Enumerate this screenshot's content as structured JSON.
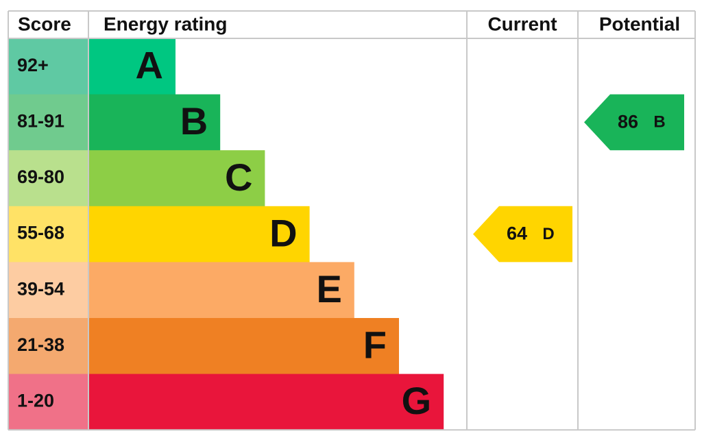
{
  "header": {
    "score": "Score",
    "rating": "Energy rating",
    "current": "Current",
    "potential": "Potential"
  },
  "bands": [
    {
      "score": "92+",
      "letter": "A",
      "color": "#00c781",
      "score_color": "#5fc9a3"
    },
    {
      "score": "81-91",
      "letter": "B",
      "color": "#19b459",
      "score_color": "#70cb8e"
    },
    {
      "score": "69-80",
      "letter": "C",
      "color": "#8dce46",
      "score_color": "#b9e08d"
    },
    {
      "score": "55-68",
      "letter": "D",
      "color": "#ffd500",
      "score_color": "#ffe266"
    },
    {
      "score": "39-54",
      "letter": "E",
      "color": "#fcaa65",
      "score_color": "#fdcca2"
    },
    {
      "score": "21-38",
      "letter": "F",
      "color": "#ef8023",
      "score_color": "#f4a96f"
    },
    {
      "score": "1-20",
      "letter": "G",
      "color": "#e9153b",
      "score_color": "#f07188"
    }
  ],
  "current": {
    "value": 64,
    "letter": "D"
  },
  "potential": {
    "value": 86,
    "letter": "B"
  }
}
